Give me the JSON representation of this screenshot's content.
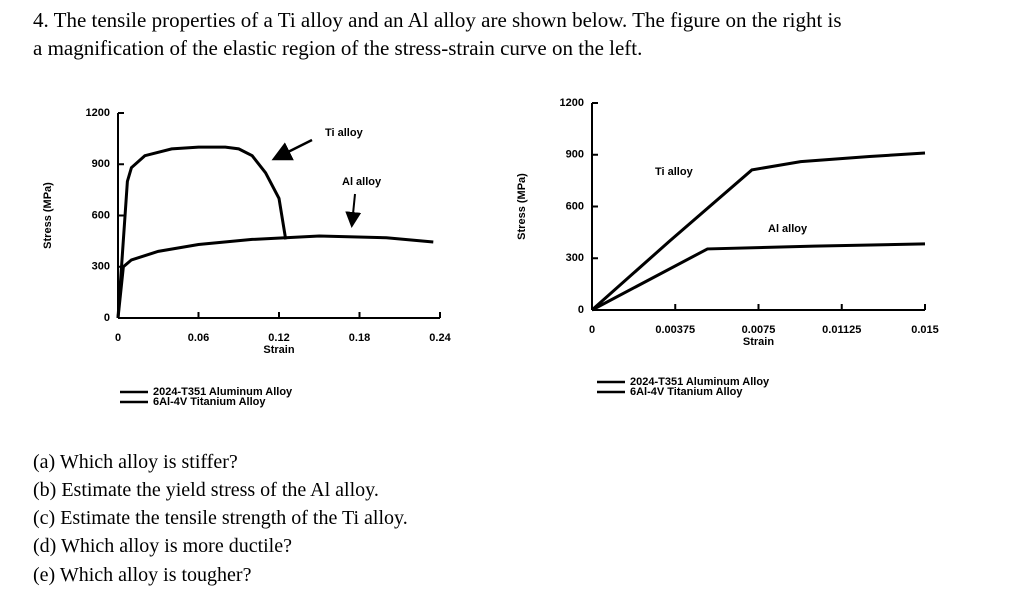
{
  "question_lines": [
    "4. The tensile properties of a Ti alloy and an Al alloy are shown below.  The figure on the right is",
    "a magnification of the elastic region of the stress-strain curve on the left."
  ],
  "parts": [
    "(a) Which alloy is stiffer?",
    "(b) Estimate the yield stress of the Al alloy.",
    "(c) Estimate the tensile strength of the Ti alloy.",
    "(d) Which alloy is more ductile?",
    "(e) Which alloy is tougher?"
  ],
  "chart_data": [
    {
      "type": "line",
      "xlabel": "Strain",
      "ylabel": "Stress (MPa)",
      "xlim": [
        0,
        0.24
      ],
      "xticks": [
        0,
        0.06,
        0.12,
        0.18,
        0.24
      ],
      "ylim": [
        0,
        1200
      ],
      "yticks": [
        0,
        300,
        600,
        900,
        1200
      ],
      "annotations": [
        "Ti alloy",
        "Al alloy"
      ],
      "series": [
        {
          "name": "2024-T351 Aluminum Alloy",
          "color": "#000000",
          "x": [
            0,
            0.004,
            0.01,
            0.03,
            0.06,
            0.1,
            0.15,
            0.2,
            0.235
          ],
          "values": [
            0,
            300,
            340,
            390,
            430,
            460,
            480,
            470,
            445
          ]
        },
        {
          "name": "6Al-4V Titanium Alloy",
          "color": "#000000",
          "x": [
            0,
            0.007,
            0.01,
            0.02,
            0.04,
            0.06,
            0.08,
            0.09,
            0.1,
            0.11,
            0.12,
            0.125
          ],
          "values": [
            0,
            800,
            880,
            950,
            990,
            1000,
            1000,
            990,
            950,
            850,
            700,
            460
          ]
        }
      ]
    },
    {
      "type": "line",
      "xlabel": "Strain",
      "ylabel": "Stress (MPa)",
      "xlim": [
        0,
        0.015
      ],
      "xticks": [
        0,
        0.00375,
        0.0075,
        0.01125,
        0.015
      ],
      "ylim": [
        0,
        1200
      ],
      "yticks": [
        0,
        300,
        600,
        900,
        1200
      ],
      "annotations": [
        "Ti alloy",
        "Al alloy"
      ],
      "series": [
        {
          "name": "2024-T351 Aluminum Alloy",
          "color": "#000000",
          "x": [
            0,
            0.0052,
            0.01,
            0.015
          ],
          "values": [
            0,
            354,
            370,
            383
          ]
        },
        {
          "name": "6Al-4V Titanium Alloy",
          "color": "#000000",
          "x": [
            0,
            0.0035,
            0.0072,
            0.0094,
            0.0125,
            0.015
          ],
          "values": [
            0,
            400,
            812,
            860,
            890,
            910
          ]
        }
      ]
    }
  ]
}
